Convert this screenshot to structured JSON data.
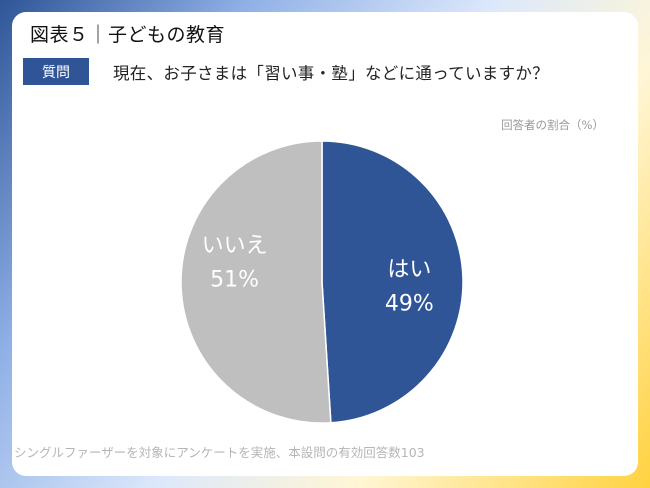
{
  "header": {
    "title": "図表５｜子どもの教育",
    "question_badge": "質問",
    "question": "現在、お子さまは「習い事・塾」などに通っていますか？"
  },
  "chart_data": {
    "type": "pie",
    "unit_label": "回答者の割合（%）",
    "categories": [
      "はい",
      "いいえ"
    ],
    "values": [
      49,
      51
    ],
    "labels": [
      "49%",
      "51%"
    ],
    "colors": [
      "#2f5597",
      "#bfbfbf"
    ],
    "start": "12 o'clock, clockwise"
  },
  "footer": {
    "note": "シングルファーザーを対象にアンケートを実施、本設問の有効回答数103"
  }
}
